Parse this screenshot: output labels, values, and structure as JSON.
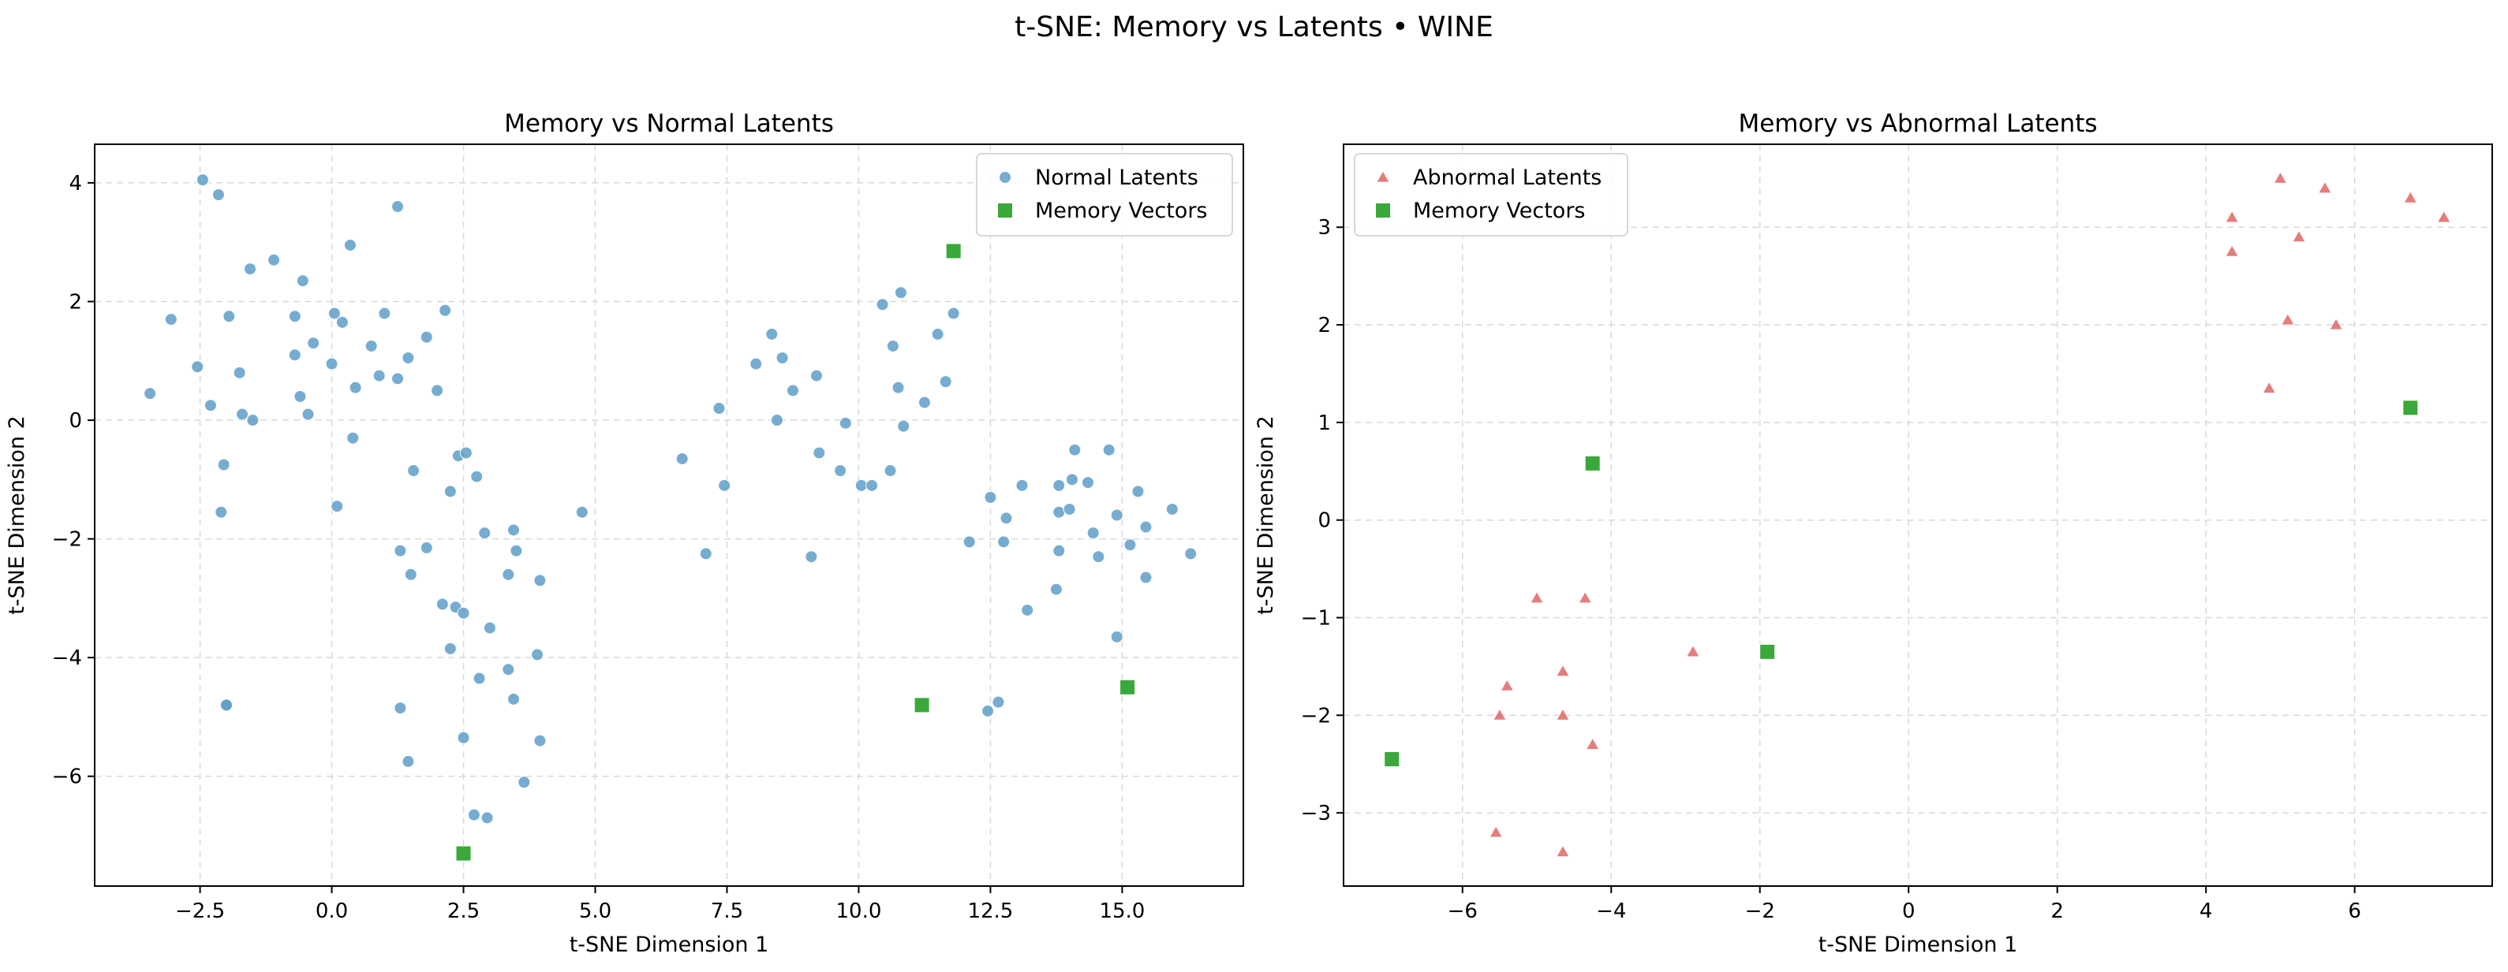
{
  "figure": {
    "title": "t-SNE: Memory vs Latents • WINE"
  },
  "colors": {
    "normal": "#5f9ec9",
    "abnormal": "#e06666",
    "memory": "#3aa83a"
  },
  "chart_data": [
    {
      "type": "scatter",
      "title": "Memory vs Normal Latents",
      "xlabel": "t-SNE Dimension 1",
      "ylabel": "t-SNE Dimension 2",
      "xlim": [
        -4.5,
        17.3
      ],
      "ylim": [
        -7.85,
        4.65
      ],
      "xticks": [
        -2.5,
        0.0,
        2.5,
        5.0,
        7.5,
        10.0,
        12.5,
        15.0
      ],
      "xtick_labels": [
        "−2.5",
        "0.0",
        "2.5",
        "5.0",
        "7.5",
        "10.0",
        "12.5",
        "15.0"
      ],
      "yticks": [
        -6,
        -4,
        -2,
        0,
        2,
        4
      ],
      "ytick_labels": [
        "−6",
        "−4",
        "−2",
        "0",
        "2",
        "4"
      ],
      "grid": true,
      "legend": "upper right",
      "series": [
        {
          "name": "Normal Latents",
          "marker": "circle",
          "color": "#5f9ec9",
          "points": [
            [
              -2.45,
              4.05
            ],
            [
              -2.15,
              3.8
            ],
            [
              -3.45,
              0.45
            ],
            [
              -3.05,
              1.7
            ],
            [
              -2.55,
              0.9
            ],
            [
              -2.3,
              0.25
            ],
            [
              -2.05,
              -0.75
            ],
            [
              -2.1,
              -1.55
            ],
            [
              -1.95,
              1.75
            ],
            [
              -1.75,
              0.8
            ],
            [
              -1.7,
              0.1
            ],
            [
              -1.55,
              2.55
            ],
            [
              -1.5,
              0.0
            ],
            [
              -1.1,
              2.7
            ],
            [
              -0.7,
              1.75
            ],
            [
              -0.7,
              1.1
            ],
            [
              -0.6,
              0.4
            ],
            [
              -0.55,
              2.35
            ],
            [
              -0.45,
              0.1
            ],
            [
              -0.35,
              1.3
            ],
            [
              0.0,
              0.95
            ],
            [
              0.05,
              1.8
            ],
            [
              0.1,
              -1.45
            ],
            [
              0.2,
              1.65
            ],
            [
              0.35,
              2.95
            ],
            [
              0.4,
              -0.3
            ],
            [
              0.45,
              0.55
            ],
            [
              0.75,
              1.25
            ],
            [
              0.9,
              0.75
            ],
            [
              1.0,
              1.8
            ],
            [
              1.25,
              0.7
            ],
            [
              1.25,
              3.6
            ],
            [
              1.45,
              1.05
            ],
            [
              1.55,
              -0.85
            ],
            [
              1.8,
              1.4
            ],
            [
              2.0,
              0.5
            ],
            [
              2.15,
              1.85
            ],
            [
              1.3,
              -2.2
            ],
            [
              1.5,
              -2.6
            ],
            [
              1.8,
              -2.15
            ],
            [
              2.25,
              -1.2
            ],
            [
              2.4,
              -0.6
            ],
            [
              2.55,
              -0.55
            ],
            [
              2.75,
              -0.95
            ],
            [
              2.9,
              -1.9
            ],
            [
              3.45,
              -1.85
            ],
            [
              3.5,
              -2.2
            ],
            [
              3.35,
              -2.6
            ],
            [
              3.95,
              -2.7
            ],
            [
              2.1,
              -3.1
            ],
            [
              2.35,
              -3.15
            ],
            [
              2.5,
              -3.25
            ],
            [
              3.0,
              -3.5
            ],
            [
              2.25,
              -3.85
            ],
            [
              3.9,
              -3.95
            ],
            [
              3.35,
              -4.2
            ],
            [
              2.8,
              -4.35
            ],
            [
              3.45,
              -4.7
            ],
            [
              1.3,
              -4.85
            ],
            [
              2.5,
              -5.35
            ],
            [
              3.95,
              -5.4
            ],
            [
              1.45,
              -5.75
            ],
            [
              3.65,
              -6.1
            ],
            [
              2.7,
              -6.65
            ],
            [
              2.95,
              -6.7
            ],
            [
              4.75,
              -1.55
            ],
            [
              -2.0,
              -4.8
            ],
            [
              -2.0,
              -4.8
            ],
            [
              6.65,
              -0.65
            ],
            [
              7.1,
              -2.25
            ],
            [
              7.35,
              0.2
            ],
            [
              7.45,
              -1.1
            ],
            [
              8.05,
              0.95
            ],
            [
              8.35,
              1.45
            ],
            [
              8.45,
              0.0
            ],
            [
              8.55,
              1.05
            ],
            [
              8.75,
              0.5
            ],
            [
              9.1,
              -2.3
            ],
            [
              9.2,
              0.75
            ],
            [
              9.25,
              -0.55
            ],
            [
              9.65,
              -0.85
            ],
            [
              9.75,
              -0.05
            ],
            [
              10.05,
              -1.1
            ],
            [
              10.25,
              -1.1
            ],
            [
              10.45,
              1.95
            ],
            [
              10.6,
              -0.85
            ],
            [
              10.65,
              1.25
            ],
            [
              10.75,
              0.55
            ],
            [
              10.8,
              2.15
            ],
            [
              10.85,
              -0.1
            ],
            [
              11.25,
              0.3
            ],
            [
              11.5,
              1.45
            ],
            [
              11.65,
              0.65
            ],
            [
              11.8,
              1.8
            ],
            [
              12.1,
              -2.05
            ],
            [
              12.5,
              -1.3
            ],
            [
              12.45,
              -4.9
            ],
            [
              12.65,
              -4.75
            ],
            [
              12.75,
              -2.05
            ],
            [
              12.8,
              -1.65
            ],
            [
              13.1,
              -1.1
            ],
            [
              13.2,
              -3.2
            ],
            [
              13.8,
              -1.1
            ],
            [
              13.8,
              -1.55
            ],
            [
              13.8,
              -2.2
            ],
            [
              13.75,
              -2.85
            ],
            [
              14.0,
              -1.5
            ],
            [
              14.05,
              -1.0
            ],
            [
              14.1,
              -0.5
            ],
            [
              14.35,
              -1.05
            ],
            [
              14.45,
              -1.9
            ],
            [
              14.55,
              -2.3
            ],
            [
              14.75,
              -0.5
            ],
            [
              14.9,
              -1.6
            ],
            [
              14.9,
              -3.65
            ],
            [
              15.15,
              -2.1
            ],
            [
              15.3,
              -1.2
            ],
            [
              15.45,
              -1.8
            ],
            [
              15.45,
              -2.65
            ],
            [
              15.95,
              -1.5
            ],
            [
              16.3,
              -2.25
            ]
          ]
        },
        {
          "name": "Memory Vectors",
          "marker": "square",
          "color": "#3aa83a",
          "points": [
            [
              11.8,
              2.85
            ],
            [
              2.5,
              -7.3
            ],
            [
              11.2,
              -4.8
            ],
            [
              15.1,
              -4.5
            ]
          ]
        }
      ]
    },
    {
      "type": "scatter",
      "title": "Memory vs Abnormal Latents",
      "xlabel": "t-SNE Dimension 1",
      "ylabel": "t-SNE Dimension 2",
      "xlim": [
        -7.6,
        7.85
      ],
      "ylim": [
        -3.75,
        3.85
      ],
      "xticks": [
        -6,
        -4,
        -2,
        0,
        2,
        4,
        6
      ],
      "xtick_labels": [
        "−6",
        "−4",
        "−2",
        "0",
        "2",
        "4",
        "6"
      ],
      "yticks": [
        -3,
        -2,
        -1,
        0,
        1,
        2,
        3
      ],
      "ytick_labels": [
        "−3",
        "−2",
        "−1",
        "0",
        "1",
        "2",
        "3"
      ],
      "grid": true,
      "legend": "upper left",
      "series": [
        {
          "name": "Abnormal Latents",
          "marker": "triangle",
          "color": "#e06666",
          "points": [
            [
              4.35,
              3.1
            ],
            [
              4.35,
              2.75
            ],
            [
              5.0,
              3.5
            ],
            [
              5.25,
              2.9
            ],
            [
              5.6,
              3.4
            ],
            [
              6.75,
              3.3
            ],
            [
              7.2,
              3.1
            ],
            [
              5.1,
              2.05
            ],
            [
              5.75,
              2.0
            ],
            [
              4.85,
              1.35
            ],
            [
              -5.0,
              -0.8
            ],
            [
              -4.35,
              -0.8
            ],
            [
              -4.65,
              -1.55
            ],
            [
              -2.9,
              -1.35
            ],
            [
              -5.4,
              -1.7
            ],
            [
              -5.5,
              -2.0
            ],
            [
              -4.65,
              -2.0
            ],
            [
              -4.25,
              -2.3
            ],
            [
              -5.55,
              -3.2
            ],
            [
              -4.65,
              -3.4
            ]
          ]
        },
        {
          "name": "Memory Vectors",
          "marker": "square",
          "color": "#3aa83a",
          "points": [
            [
              6.75,
              1.15
            ],
            [
              -4.25,
              0.58
            ],
            [
              -1.9,
              -1.35
            ],
            [
              -6.95,
              -2.45
            ]
          ]
        }
      ]
    }
  ]
}
